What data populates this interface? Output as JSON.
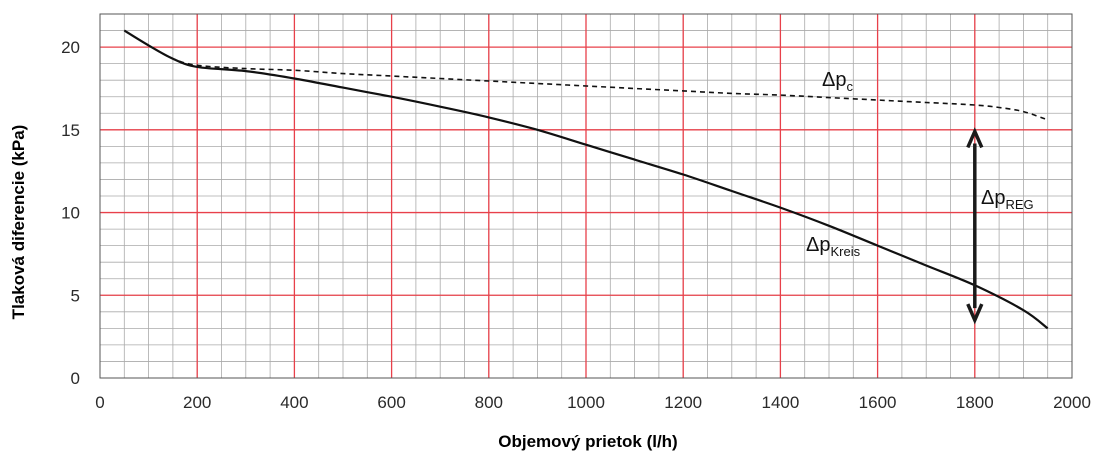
{
  "chart_data": {
    "type": "line",
    "xlabel": "Objemový prietok (l/h)",
    "ylabel": "Tlaková diferencie (kPa)",
    "xlim": [
      0,
      2000
    ],
    "ylim": [
      0,
      22
    ],
    "x_ticks": [
      0,
      200,
      400,
      600,
      800,
      1000,
      1200,
      1400,
      1600,
      1800,
      2000
    ],
    "y_ticks": [
      0,
      5,
      10,
      15,
      20
    ],
    "grid": true,
    "colors": {
      "major_grid": "#e8404a",
      "minor_grid": "#aaaaaa",
      "line": "#111111"
    },
    "series": [
      {
        "name": "Δp_c",
        "label_main": "Δp",
        "label_sub": "c",
        "style": "dashed",
        "x": [
          50,
          100,
          150,
          200,
          300,
          400,
          500,
          600,
          700,
          800,
          900,
          1000,
          1100,
          1200,
          1300,
          1400,
          1500,
          1600,
          1700,
          1800,
          1850,
          1900,
          1950
        ],
        "y": [
          21.0,
          20.1,
          19.3,
          18.9,
          18.7,
          18.6,
          18.4,
          18.25,
          18.1,
          17.95,
          17.8,
          17.65,
          17.5,
          17.35,
          17.2,
          17.1,
          16.95,
          16.8,
          16.65,
          16.5,
          16.35,
          16.1,
          15.6
        ]
      },
      {
        "name": "Δp_Kreis",
        "label_main": "Δp",
        "label_sub": "Kreis",
        "style": "solid",
        "x": [
          50,
          100,
          150,
          200,
          300,
          400,
          500,
          600,
          700,
          800,
          900,
          1000,
          1100,
          1200,
          1300,
          1400,
          1500,
          1600,
          1700,
          1800,
          1900,
          1950
        ],
        "y": [
          21.0,
          20.1,
          19.3,
          18.8,
          18.55,
          18.1,
          17.55,
          17.0,
          16.4,
          15.75,
          15.0,
          14.1,
          13.2,
          12.3,
          11.3,
          10.3,
          9.2,
          8.0,
          6.8,
          5.6,
          4.1,
          3.0
        ]
      }
    ],
    "annotations": [
      {
        "type": "double-arrow",
        "x": 1800,
        "y_from": 3.5,
        "y_to": 14.9,
        "label_main": "Δp",
        "label_sub": "REG"
      }
    ]
  }
}
